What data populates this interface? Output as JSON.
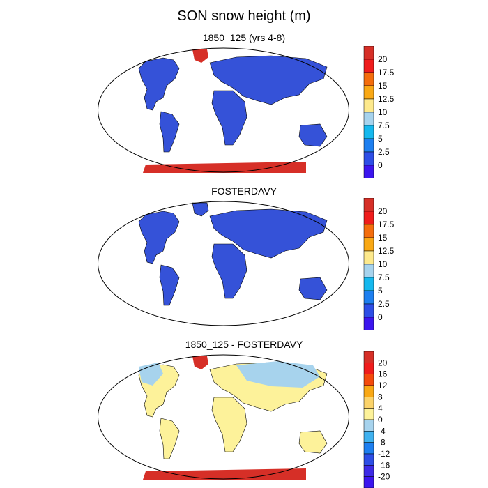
{
  "title": "SON snow height (m)",
  "panels": [
    {
      "title": "1850_125 (yrs 4-8)",
      "colorbar": {
        "labels": [
          "20",
          "17.5",
          "15",
          "12.5",
          "10",
          "7.5",
          "5",
          "2.5",
          "0"
        ],
        "colors": [
          "#d62f27",
          "#ef1c1c",
          "#f46d0c",
          "#f9a814",
          "#fde98c",
          "#a7d3ed",
          "#15b8ee",
          "#1d7ff0",
          "#2d4ee6",
          "#3b15ee"
        ]
      }
    },
    {
      "title": "FOSTERDAVY",
      "colorbar": {
        "labels": [
          "20",
          "17.5",
          "15",
          "12.5",
          "10",
          "7.5",
          "5",
          "2.5",
          "0"
        ],
        "colors": [
          "#d62f27",
          "#ef1c1c",
          "#f46d0c",
          "#f9a814",
          "#fde98c",
          "#a7d3ed",
          "#15b8ee",
          "#1d7ff0",
          "#2d4ee6",
          "#3b15ee"
        ]
      }
    },
    {
      "title": "1850_125 - FOSTERDAVY",
      "colorbar": {
        "labels": [
          "20",
          "16",
          "12",
          "8",
          "4",
          "0",
          "-4",
          "-8",
          "-12",
          "-16",
          "-20"
        ],
        "colors": [
          "#d62f27",
          "#ef1c1c",
          "#f44a0c",
          "#f9a814",
          "#fbd36a",
          "#fdf29a",
          "#a7d3ed",
          "#3fb1ef",
          "#1d7ff0",
          "#2d4ee6",
          "#3d2ae6",
          "#3b15ee"
        ]
      }
    }
  ],
  "map_colors": {
    "land_blue": "#3552d8",
    "land_yellow": "#fdf29a",
    "light_blue": "#a7d3ed",
    "red": "#d62f27",
    "outline": "#000000"
  }
}
